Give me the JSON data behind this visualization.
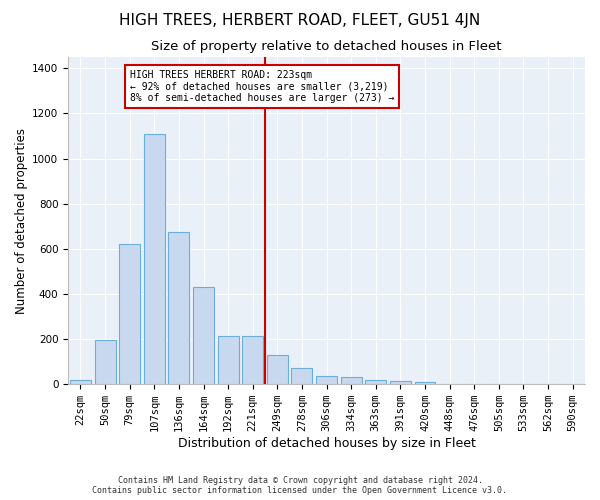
{
  "title": "HIGH TREES, HERBERT ROAD, FLEET, GU51 4JN",
  "subtitle": "Size of property relative to detached houses in Fleet",
  "xlabel": "Distribution of detached houses by size in Fleet",
  "ylabel": "Number of detached properties",
  "bin_labels": [
    "22sqm",
    "50sqm",
    "79sqm",
    "107sqm",
    "136sqm",
    "164sqm",
    "192sqm",
    "221sqm",
    "249sqm",
    "278sqm",
    "306sqm",
    "334sqm",
    "363sqm",
    "391sqm",
    "420sqm",
    "448sqm",
    "476sqm",
    "505sqm",
    "533sqm",
    "562sqm",
    "590sqm"
  ],
  "bar_values": [
    20,
    195,
    620,
    1110,
    675,
    430,
    215,
    215,
    130,
    70,
    35,
    30,
    20,
    15,
    10,
    0,
    0,
    0,
    0,
    0,
    0
  ],
  "bar_color": "#c8d9ef",
  "bar_edgecolor": "#6baed6",
  "bg_color": "#eaf0f8",
  "grid_color": "#d0d8e8",
  "vline_color": "#cc0000",
  "vline_pos": 7.5,
  "annotation_text": "HIGH TREES HERBERT ROAD: 223sqm\n← 92% of detached houses are smaller (3,219)\n8% of semi-detached houses are larger (273) →",
  "annotation_box_edgecolor": "#cc0000",
  "ylim": [
    0,
    1450
  ],
  "yticks": [
    0,
    200,
    400,
    600,
    800,
    1000,
    1200,
    1400
  ],
  "footer": "Contains HM Land Registry data © Crown copyright and database right 2024.\nContains public sector information licensed under the Open Government Licence v3.0.",
  "title_fontsize": 11,
  "subtitle_fontsize": 9.5,
  "xlabel_fontsize": 9,
  "ylabel_fontsize": 8.5,
  "tick_fontsize": 7.5,
  "annotation_fontsize": 7
}
